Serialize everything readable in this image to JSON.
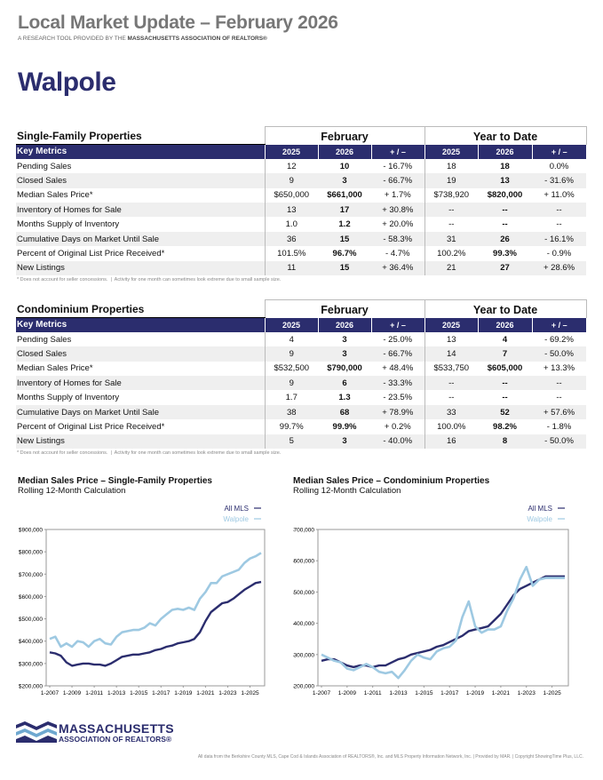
{
  "header": {
    "title": "Local Market Update – February 2026",
    "subtitle_lead": "A RESEARCH TOOL PROVIDED BY THE",
    "subtitle_org": "MASSACHUSETTS ASSOCIATION OF REALTORS®"
  },
  "town": "Walpole",
  "tables": [
    {
      "title": "Single-Family Properties",
      "groups": [
        "February",
        "Year to Date"
      ],
      "columns": [
        "Key Metrics",
        "2025",
        "2026",
        "+ / –",
        "2025",
        "2026",
        "+ / –"
      ],
      "rows": [
        [
          "Pending Sales",
          "12",
          "10",
          "- 16.7%",
          "18",
          "18",
          "0.0%"
        ],
        [
          "Closed Sales",
          "9",
          "3",
          "- 66.7%",
          "19",
          "13",
          "- 31.6%"
        ],
        [
          "Median Sales Price*",
          "$650,000",
          "$661,000",
          "+ 1.7%",
          "$738,920",
          "$820,000",
          "+ 11.0%"
        ],
        [
          "Inventory of Homes for Sale",
          "13",
          "17",
          "+ 30.8%",
          "--",
          "--",
          "--"
        ],
        [
          "Months Supply of Inventory",
          "1.0",
          "1.2",
          "+ 20.0%",
          "--",
          "--",
          "--"
        ],
        [
          "Cumulative Days on Market Until Sale",
          "36",
          "15",
          "- 58.3%",
          "31",
          "26",
          "- 16.1%"
        ],
        [
          "Percent of Original List Price Received*",
          "101.5%",
          "96.7%",
          "- 4.7%",
          "100.2%",
          "99.3%",
          "- 0.9%"
        ],
        [
          "New Listings",
          "11",
          "15",
          "+ 36.4%",
          "21",
          "27",
          "+ 28.6%"
        ]
      ],
      "note": "* Does not account for seller concessions.  |  Activity for one month can sometimes look extreme due to small sample size."
    },
    {
      "title": "Condominium Properties",
      "groups": [
        "February",
        "Year to Date"
      ],
      "columns": [
        "Key Metrics",
        "2025",
        "2026",
        "+ / –",
        "2025",
        "2026",
        "+ / –"
      ],
      "rows": [
        [
          "Pending Sales",
          "4",
          "3",
          "- 25.0%",
          "13",
          "4",
          "- 69.2%"
        ],
        [
          "Closed Sales",
          "9",
          "3",
          "- 66.7%",
          "14",
          "7",
          "- 50.0%"
        ],
        [
          "Median Sales Price*",
          "$532,500",
          "$790,000",
          "+ 48.4%",
          "$533,750",
          "$605,000",
          "+ 13.3%"
        ],
        [
          "Inventory of Homes for Sale",
          "9",
          "6",
          "- 33.3%",
          "--",
          "--",
          "--"
        ],
        [
          "Months Supply of Inventory",
          "1.7",
          "1.3",
          "- 23.5%",
          "--",
          "--",
          "--"
        ],
        [
          "Cumulative Days on Market Until Sale",
          "38",
          "68",
          "+ 78.9%",
          "33",
          "52",
          "+ 57.6%"
        ],
        [
          "Percent of Original List Price Received*",
          "99.7%",
          "99.9%",
          "+ 0.2%",
          "100.0%",
          "98.2%",
          "- 1.8%"
        ],
        [
          "New Listings",
          "5",
          "3",
          "- 40.0%",
          "16",
          "8",
          "- 50.0%"
        ]
      ],
      "note": "* Does not account for seller concessions.  |  Activity for one month can sometimes look extreme due to small sample size."
    }
  ],
  "chart_data": [
    {
      "type": "line",
      "title": "Median Sales Price – Single-Family Properties",
      "subtitle": "Rolling 12-Month Calculation",
      "x": [
        "1-2007",
        "7-2007",
        "1-2008",
        "7-2008",
        "1-2009",
        "7-2009",
        "1-2010",
        "7-2010",
        "1-2011",
        "7-2011",
        "1-2012",
        "7-2012",
        "1-2013",
        "7-2013",
        "1-2014",
        "7-2014",
        "1-2015",
        "7-2015",
        "1-2016",
        "7-2016",
        "1-2017",
        "7-2017",
        "1-2018",
        "7-2018",
        "1-2019",
        "7-2019",
        "1-2020",
        "7-2020",
        "1-2021",
        "7-2021",
        "1-2022",
        "7-2022",
        "1-2023",
        "7-2023",
        "1-2024",
        "7-2024",
        "1-2025",
        "7-2025",
        "1-2026"
      ],
      "xticks": [
        "1-2007",
        "1-2009",
        "1-2011",
        "1-2013",
        "1-2015",
        "1-2017",
        "1-2019",
        "1-2021",
        "1-2023",
        "1-2025"
      ],
      "series": [
        {
          "name": "All MLS",
          "color": "#2b2d6e",
          "values": [
            350000,
            345000,
            335000,
            305000,
            290000,
            295000,
            300000,
            300000,
            295000,
            295000,
            290000,
            300000,
            315000,
            330000,
            335000,
            340000,
            340000,
            345000,
            350000,
            360000,
            365000,
            375000,
            380000,
            390000,
            395000,
            400000,
            410000,
            440000,
            490000,
            530000,
            550000,
            570000,
            575000,
            590000,
            610000,
            630000,
            645000,
            660000,
            665000
          ]
        },
        {
          "name": "Walpole",
          "color": "#9ec9e2",
          "values": [
            410000,
            420000,
            375000,
            390000,
            375000,
            400000,
            395000,
            375000,
            400000,
            410000,
            390000,
            385000,
            420000,
            440000,
            445000,
            450000,
            450000,
            460000,
            480000,
            470000,
            500000,
            520000,
            540000,
            545000,
            540000,
            550000,
            540000,
            590000,
            620000,
            660000,
            660000,
            690000,
            700000,
            710000,
            720000,
            750000,
            770000,
            780000,
            795000
          ]
        }
      ],
      "ylim": [
        200000,
        900000
      ],
      "yticks": [
        {
          "value": 200000,
          "label": "$200,000"
        },
        {
          "value": 300000,
          "label": "$300,000"
        },
        {
          "value": 400000,
          "label": "$400,000"
        },
        {
          "value": 500000,
          "label": "$500,000"
        },
        {
          "value": 600000,
          "label": "$600,000"
        },
        {
          "value": 700000,
          "label": "$700,000"
        },
        {
          "value": 800000,
          "label": "$800,000"
        },
        {
          "value": 900000,
          "label": "$900,000"
        }
      ],
      "grid": false,
      "legend": "top-right"
    },
    {
      "type": "line",
      "title": "Median Sales Price – Condominium Properties",
      "subtitle": "Rolling 12-Month Calculation",
      "x": [
        "1-2007",
        "7-2007",
        "1-2008",
        "7-2008",
        "1-2009",
        "7-2009",
        "1-2010",
        "7-2010",
        "1-2011",
        "7-2011",
        "1-2012",
        "7-2012",
        "1-2013",
        "7-2013",
        "1-2014",
        "7-2014",
        "1-2015",
        "7-2015",
        "1-2016",
        "7-2016",
        "1-2017",
        "7-2017",
        "1-2018",
        "7-2018",
        "1-2019",
        "7-2019",
        "1-2020",
        "7-2020",
        "1-2021",
        "7-2021",
        "1-2022",
        "7-2022",
        "1-2023",
        "7-2023",
        "1-2024",
        "7-2024",
        "1-2025",
        "7-2025",
        "1-2026"
      ],
      "xticks": [
        "1-2007",
        "1-2009",
        "1-2011",
        "1-2013",
        "1-2015",
        "1-2017",
        "1-2019",
        "1-2021",
        "1-2023",
        "1-2025"
      ],
      "series": [
        {
          "name": "All MLS",
          "color": "#2b2d6e",
          "values": [
            280000,
            285000,
            285000,
            275000,
            265000,
            260000,
            265000,
            265000,
            260000,
            265000,
            265000,
            275000,
            285000,
            290000,
            300000,
            305000,
            310000,
            315000,
            325000,
            330000,
            340000,
            350000,
            360000,
            375000,
            380000,
            385000,
            390000,
            410000,
            430000,
            460000,
            490000,
            510000,
            520000,
            530000,
            540000,
            550000,
            550000,
            550000,
            550000
          ]
        },
        {
          "name": "Walpole",
          "color": "#9ec9e2",
          "values": [
            300000,
            290000,
            280000,
            275000,
            255000,
            250000,
            260000,
            270000,
            260000,
            245000,
            240000,
            245000,
            225000,
            250000,
            280000,
            300000,
            290000,
            285000,
            310000,
            320000,
            325000,
            345000,
            420000,
            470000,
            390000,
            370000,
            380000,
            380000,
            390000,
            440000,
            480000,
            540000,
            580000,
            520000,
            540000,
            545000,
            545000,
            545000,
            545000
          ]
        }
      ],
      "ylim": [
        200000,
        700000
      ],
      "yticks": [
        {
          "value": 200000,
          "label": "$200,000"
        },
        {
          "value": 300000,
          "label": "$300,000"
        },
        {
          "value": 400000,
          "label": "$400,000"
        },
        {
          "value": 500000,
          "label": "$500,000"
        },
        {
          "value": 600000,
          "label": "$600,000"
        },
        {
          "value": 700000,
          "label": "$700,000"
        }
      ],
      "grid": false,
      "legend": "top-right"
    }
  ],
  "footer": {
    "logo_name": "MASSACHUSETTS",
    "logo_sub": "ASSOCIATION OF REALTORS®",
    "note": "All data from the Berkshire County MLS, Cape Cod & Islands Association of REALTORS®, Inc. and MLS Property Information Network, Inc. | Provided by MAR. | Copyright ShowingTime Plus, LLC."
  }
}
